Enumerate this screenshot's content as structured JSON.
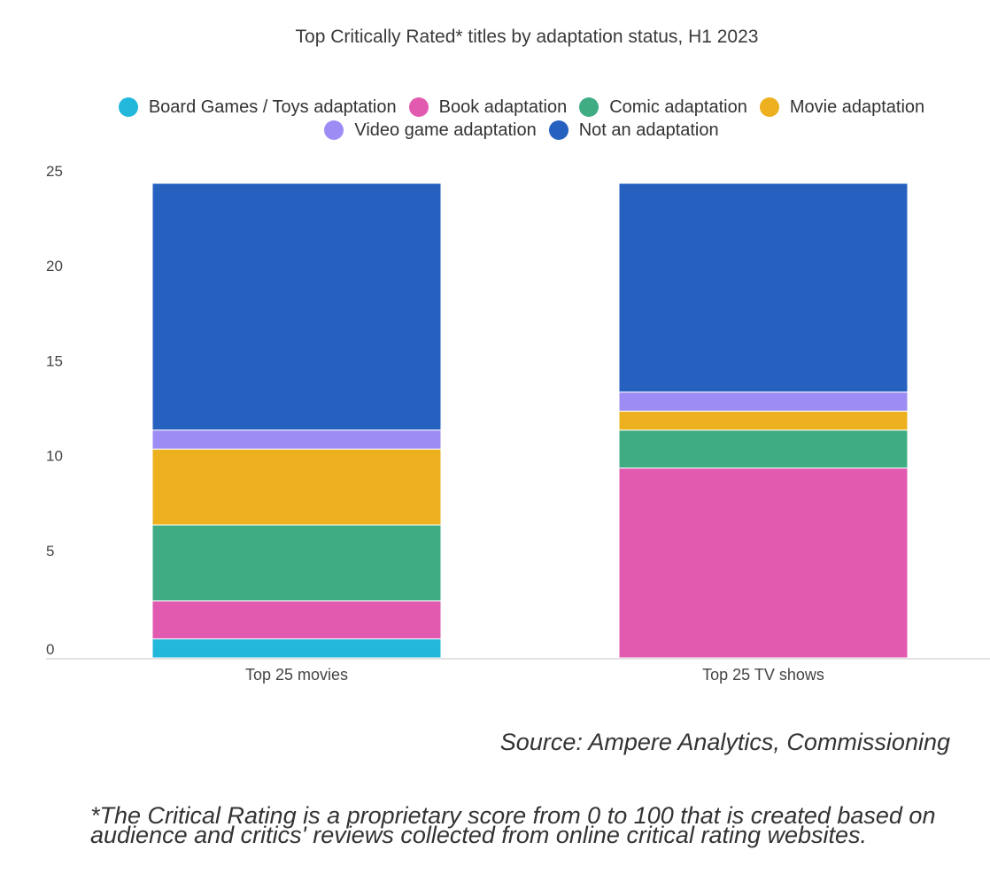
{
  "chart_data": {
    "type": "bar",
    "stacked": true,
    "title": "Top Critically Rated* titles by adaptation status, H1 2023",
    "categories": [
      "Top 25 movies",
      "Top 25 TV shows"
    ],
    "series": [
      {
        "name": "Board Games / Toys adaptation",
        "color": "#22b8dc",
        "values": [
          1,
          0
        ]
      },
      {
        "name": "Book adaptation",
        "color": "#e25ab0",
        "values": [
          2,
          10
        ]
      },
      {
        "name": "Comic adaptation",
        "color": "#3fac84",
        "values": [
          4,
          2
        ]
      },
      {
        "name": "Movie adaptation",
        "color": "#edb01e",
        "values": [
          4,
          1
        ]
      },
      {
        "name": "Video game adaptation",
        "color": "#9d8cf3",
        "values": [
          1,
          1
        ]
      },
      {
        "name": "Not an adaptation",
        "color": "#2661c0",
        "values": [
          13,
          11
        ]
      }
    ],
    "yticks": [
      0,
      5,
      10,
      15,
      20,
      25
    ],
    "ylim": [
      0,
      25
    ],
    "xlabel": "",
    "ylabel": "",
    "legend_position": "top-center"
  },
  "source_text": "Source: Ampere Analytics, Commissioning",
  "footnote_text": "*The Critical Rating is a proprietary score from 0 to 100 that is created based on audience and critics' reviews collected from online critical rating websites."
}
